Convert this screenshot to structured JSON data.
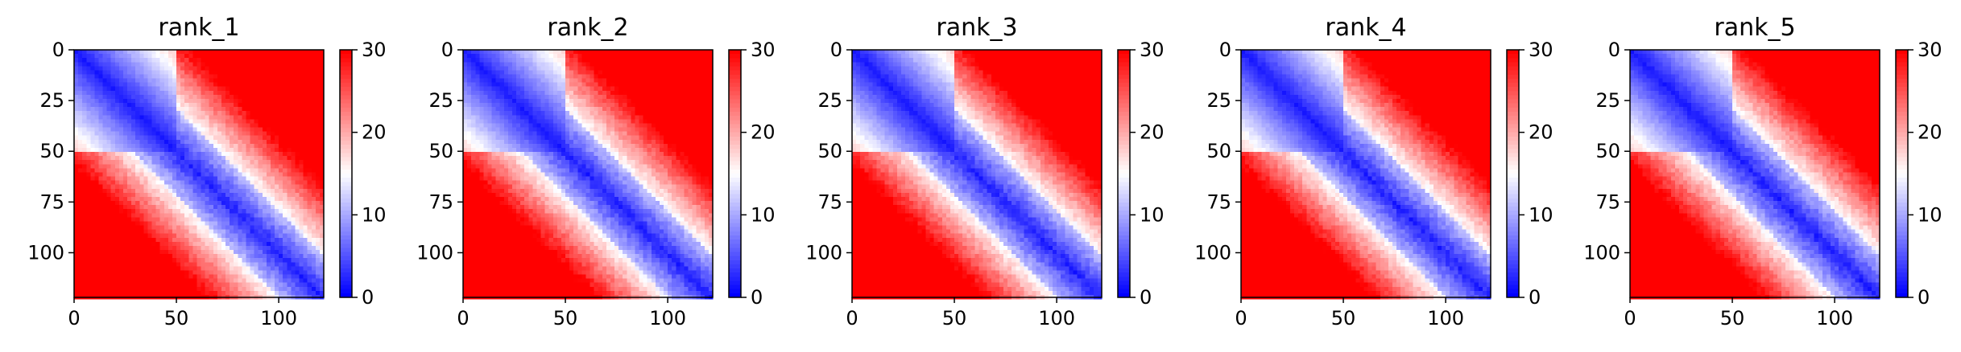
{
  "chart_data": [
    {
      "type": "heatmap",
      "title": "rank_1",
      "size": 122,
      "split": 50,
      "xtick_labels": [
        "0",
        "50",
        "100"
      ],
      "ytick_labels": [
        "0",
        "25",
        "50",
        "75",
        "100"
      ],
      "xticks": [
        0,
        50,
        100
      ],
      "yticks": [
        0,
        25,
        50,
        75,
        100
      ],
      "xlim": [
        0,
        122
      ],
      "ylim": [
        122,
        0
      ],
      "colorbar": {
        "ticks": [
          0,
          10,
          20,
          30
        ],
        "tick_labels": [
          "0",
          "10",
          "20",
          "30"
        ],
        "range": [
          0,
          30
        ],
        "colormap": "bwr"
      }
    },
    {
      "type": "heatmap",
      "title": "rank_2",
      "size": 122,
      "split": 50,
      "xtick_labels": [
        "0",
        "50",
        "100"
      ],
      "ytick_labels": [
        "0",
        "25",
        "50",
        "75",
        "100"
      ],
      "xticks": [
        0,
        50,
        100
      ],
      "yticks": [
        0,
        25,
        50,
        75,
        100
      ],
      "xlim": [
        0,
        122
      ],
      "ylim": [
        122,
        0
      ],
      "colorbar": {
        "ticks": [
          0,
          10,
          20,
          30
        ],
        "tick_labels": [
          "0",
          "10",
          "20",
          "30"
        ],
        "range": [
          0,
          30
        ],
        "colormap": "bwr"
      }
    },
    {
      "type": "heatmap",
      "title": "rank_3",
      "size": 122,
      "split": 50,
      "xtick_labels": [
        "0",
        "50",
        "100"
      ],
      "ytick_labels": [
        "0",
        "25",
        "50",
        "75",
        "100"
      ],
      "xticks": [
        0,
        50,
        100
      ],
      "yticks": [
        0,
        25,
        50,
        75,
        100
      ],
      "xlim": [
        0,
        122
      ],
      "ylim": [
        122,
        0
      ],
      "colorbar": {
        "ticks": [
          0,
          10,
          20,
          30
        ],
        "tick_labels": [
          "0",
          "10",
          "20",
          "30"
        ],
        "range": [
          0,
          30
        ],
        "colormap": "bwr"
      }
    },
    {
      "type": "heatmap",
      "title": "rank_4",
      "size": 122,
      "split": 50,
      "xtick_labels": [
        "0",
        "50",
        "100"
      ],
      "ytick_labels": [
        "0",
        "25",
        "50",
        "75",
        "100"
      ],
      "xticks": [
        0,
        50,
        100
      ],
      "yticks": [
        0,
        25,
        50,
        75,
        100
      ],
      "xlim": [
        0,
        122
      ],
      "ylim": [
        122,
        0
      ],
      "colorbar": {
        "ticks": [
          0,
          10,
          20,
          30
        ],
        "tick_labels": [
          "0",
          "10",
          "20",
          "30"
        ],
        "range": [
          0,
          30
        ],
        "colormap": "bwr"
      }
    },
    {
      "type": "heatmap",
      "title": "rank_5",
      "size": 122,
      "split": 50,
      "xtick_labels": [
        "0",
        "50",
        "100"
      ],
      "ytick_labels": [
        "0",
        "25",
        "50",
        "75",
        "100"
      ],
      "xticks": [
        0,
        50,
        100
      ],
      "yticks": [
        0,
        25,
        50,
        75,
        100
      ],
      "xlim": [
        0,
        122
      ],
      "ylim": [
        122,
        0
      ],
      "colorbar": {
        "ticks": [
          0,
          10,
          20,
          30
        ],
        "tick_labels": [
          "0",
          "10",
          "20",
          "30"
        ],
        "range": [
          0,
          30
        ],
        "colormap": "bwr"
      }
    }
  ],
  "colors": {
    "low": "#0000ff",
    "mid": "#ffffff",
    "high": "#ff0000",
    "axis": "#000000"
  }
}
